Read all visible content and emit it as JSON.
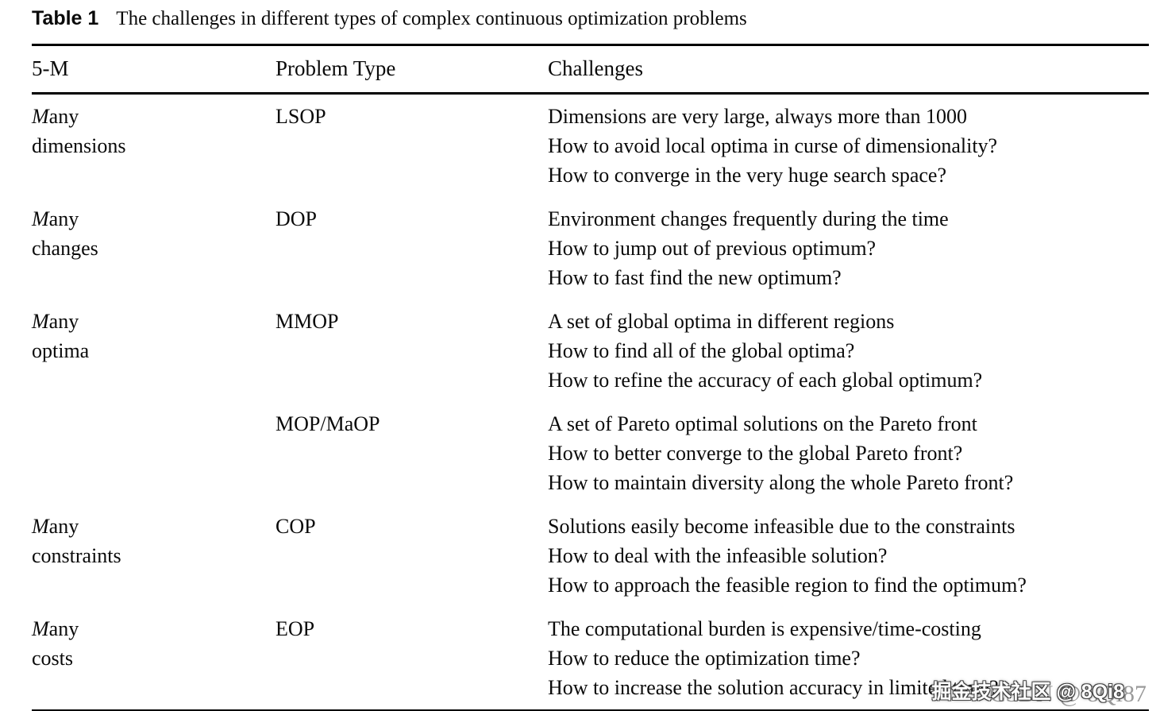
{
  "caption": {
    "label": "Table 1",
    "text": "The challenges in different types of complex continuous optimization problems"
  },
  "table": {
    "headers": [
      "5-M",
      "Problem Type",
      "Challenges"
    ],
    "rows": [
      {
        "m5": [
          "Many",
          "dimensions"
        ],
        "problem_type": "LSOP",
        "challenges": [
          "Dimensions are very large, always more than 1000",
          "How to avoid local optima in curse of dimensionality?",
          "How to converge in the very huge search space?"
        ]
      },
      {
        "m5": [
          "Many",
          "changes"
        ],
        "problem_type": "DOP",
        "challenges": [
          "Environment changes frequently during the time",
          "How to jump out of previous optimum?",
          "How to fast find the new optimum?"
        ]
      },
      {
        "m5": [
          "Many",
          "optima"
        ],
        "problem_type": "MMOP",
        "challenges": [
          "A set of global optima in different regions",
          "How to find all of the global optima?",
          "How to refine the accuracy of each global optimum?"
        ]
      },
      {
        "m5": [
          "",
          ""
        ],
        "problem_type": "MOP/MaOP",
        "challenges": [
          "A set of Pareto optimal solutions on the Pareto front",
          "How to better converge to the global Pareto front?",
          "How to maintain diversity along the whole Pareto front?"
        ]
      },
      {
        "m5": [
          "Many",
          "constraints"
        ],
        "problem_type": "COP",
        "challenges": [
          "Solutions easily become infeasible due to the constraints",
          "How to deal with the infeasible solution?",
          "How to approach the feasible region to find the optimum?"
        ]
      },
      {
        "m5": [
          "Many",
          "costs"
        ],
        "problem_type": "EOP",
        "challenges": [
          "The computational burden is expensive/time-costing",
          "How to reduce the optimization time?",
          "How to increase the solution accuracy in limited time?"
        ]
      }
    ]
  },
  "watermark": {
    "back": "CSDN @ 8Qi87",
    "front": "掘金技术社区 @ 8Qi8"
  }
}
